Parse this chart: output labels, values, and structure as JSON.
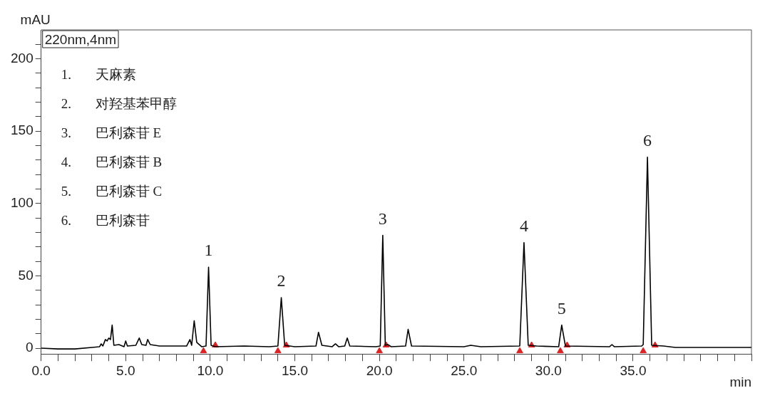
{
  "chart_data": {
    "type": "line",
    "xlabel": "min",
    "ylabel": "mAU",
    "xlim": [
      0,
      42
    ],
    "ylim": [
      -4,
      220
    ],
    "xticks": [
      {
        "value": 0,
        "label": "0.0"
      },
      {
        "value": 1,
        "label": null
      },
      {
        "value": 2,
        "label": null
      },
      {
        "value": 3,
        "label": null
      },
      {
        "value": 4,
        "label": null
      },
      {
        "value": 5,
        "label": "5.0"
      },
      {
        "value": 6,
        "label": null
      },
      {
        "value": 7,
        "label": null
      },
      {
        "value": 8,
        "label": null
      },
      {
        "value": 9,
        "label": null
      },
      {
        "value": 10,
        "label": "10.0"
      },
      {
        "value": 11,
        "label": null
      },
      {
        "value": 12,
        "label": null
      },
      {
        "value": 13,
        "label": null
      },
      {
        "value": 14,
        "label": null
      },
      {
        "value": 15,
        "label": "15.0"
      },
      {
        "value": 16,
        "label": null
      },
      {
        "value": 17,
        "label": null
      },
      {
        "value": 18,
        "label": null
      },
      {
        "value": 19,
        "label": null
      },
      {
        "value": 20,
        "label": "20.0"
      },
      {
        "value": 21,
        "label": null
      },
      {
        "value": 22,
        "label": null
      },
      {
        "value": 23,
        "label": null
      },
      {
        "value": 24,
        "label": null
      },
      {
        "value": 25,
        "label": "25.0"
      },
      {
        "value": 26,
        "label": null
      },
      {
        "value": 27,
        "label": null
      },
      {
        "value": 28,
        "label": null
      },
      {
        "value": 29,
        "label": null
      },
      {
        "value": 30,
        "label": "30.0"
      },
      {
        "value": 31,
        "label": null
      },
      {
        "value": 32,
        "label": null
      },
      {
        "value": 33,
        "label": null
      },
      {
        "value": 34,
        "label": null
      },
      {
        "value": 35,
        "label": "35.0"
      },
      {
        "value": 36,
        "label": null
      },
      {
        "value": 37,
        "label": null
      },
      {
        "value": 38,
        "label": null
      },
      {
        "value": 39,
        "label": null
      },
      {
        "value": 40,
        "label": null
      },
      {
        "value": 41,
        "label": null
      },
      {
        "value": 42,
        "label": null
      }
    ],
    "yticks": [
      0,
      {
        "value": 10,
        "label": null
      },
      {
        "value": 20,
        "label": null
      },
      {
        "value": 30,
        "label": null
      },
      {
        "value": 40,
        "label": null
      },
      50,
      {
        "value": 60,
        "label": null
      },
      {
        "value": 70,
        "label": null
      },
      {
        "value": 80,
        "label": null
      },
      {
        "value": 90,
        "label": null
      },
      100,
      {
        "value": 110,
        "label": null
      },
      {
        "value": 120,
        "label": null
      },
      {
        "value": 130,
        "label": null
      },
      {
        "value": 140,
        "label": null
      },
      150,
      {
        "value": 160,
        "label": null
      },
      {
        "value": 170,
        "label": null
      },
      {
        "value": 180,
        "label": null
      },
      {
        "value": 190,
        "label": null
      },
      200,
      {
        "value": 210,
        "label": null
      }
    ],
    "series": [
      {
        "color": "#000000",
        "x": [
          0,
          1,
          2,
          3,
          3.45,
          3.55,
          3.65,
          3.8,
          3.9,
          4.0,
          4.1,
          4.2,
          4.3,
          4.6,
          4.9,
          5.0,
          5.1,
          5.6,
          5.8,
          5.95,
          6.2,
          6.3,
          6.45,
          7.0,
          8.0,
          8.6,
          8.8,
          8.9,
          9.05,
          9.2,
          9.5,
          9.75,
          9.9,
          10.05,
          10.3,
          12,
          13.5,
          14.0,
          14.2,
          14.4,
          15,
          16.25,
          16.4,
          16.6,
          17.2,
          17.4,
          17.6,
          17.95,
          18.1,
          18.25,
          19.8,
          20.05,
          20.2,
          20.35,
          20.5,
          20.7,
          21.55,
          21.7,
          21.9,
          25,
          25.4,
          26,
          28.3,
          28.55,
          28.8,
          29.3,
          30.6,
          30.78,
          31.0,
          33.6,
          33.75,
          33.9,
          35.5,
          35.6,
          35.85,
          36.1,
          36.8,
          37.5,
          42
        ],
        "values": [
          0,
          -0.5,
          -0.5,
          0.5,
          1,
          3,
          1.5,
          6,
          5,
          7,
          6,
          16,
          2,
          2.5,
          1,
          5,
          1.5,
          2,
          7,
          2.5,
          2,
          6,
          2.5,
          1.5,
          1.5,
          1.5,
          6,
          2,
          19,
          4,
          1,
          1.5,
          56,
          2,
          1,
          1.5,
          1,
          1.5,
          35,
          2,
          1,
          1.5,
          11,
          2,
          1,
          3,
          1,
          1.5,
          7,
          1.5,
          1,
          1.5,
          78,
          2,
          2.5,
          1,
          1.5,
          13,
          1.5,
          1,
          2,
          1,
          1.5,
          73,
          2,
          1.5,
          1,
          16,
          1.5,
          1,
          2.5,
          1,
          1.5,
          2.5,
          132,
          2,
          1.5,
          0.5,
          0.5
        ]
      },
      {
        "type": "scatter",
        "color": "#e02020",
        "marker": "triangle",
        "x": [
          9.6,
          10.3,
          14.0,
          14.5,
          20.0,
          20.4,
          28.3,
          29.0,
          30.7,
          31.1,
          35.6,
          36.3
        ],
        "values": [
          -2,
          2,
          -2,
          2,
          -2,
          2,
          -2,
          2,
          -2,
          2,
          -2,
          2
        ]
      }
    ],
    "annotations": [
      "220nm,4nm",
      "1. 天麻素",
      "2. 对羟基苯甲醇",
      "3. 巴利森苷 E",
      "4. 巴利森苷 B",
      "5. 巴利森苷 C",
      "6. 巴利森苷",
      {
        "text": "1",
        "x": 9.9,
        "y": 56
      },
      {
        "text": "2",
        "x": 14.2,
        "y": 35
      },
      {
        "text": "3",
        "x": 20.2,
        "y": 78
      },
      {
        "text": "4",
        "x": 28.55,
        "y": 73
      },
      {
        "text": "5",
        "x": 30.78,
        "y": 16
      },
      {
        "text": "6",
        "x": 35.85,
        "y": 132
      }
    ]
  }
}
